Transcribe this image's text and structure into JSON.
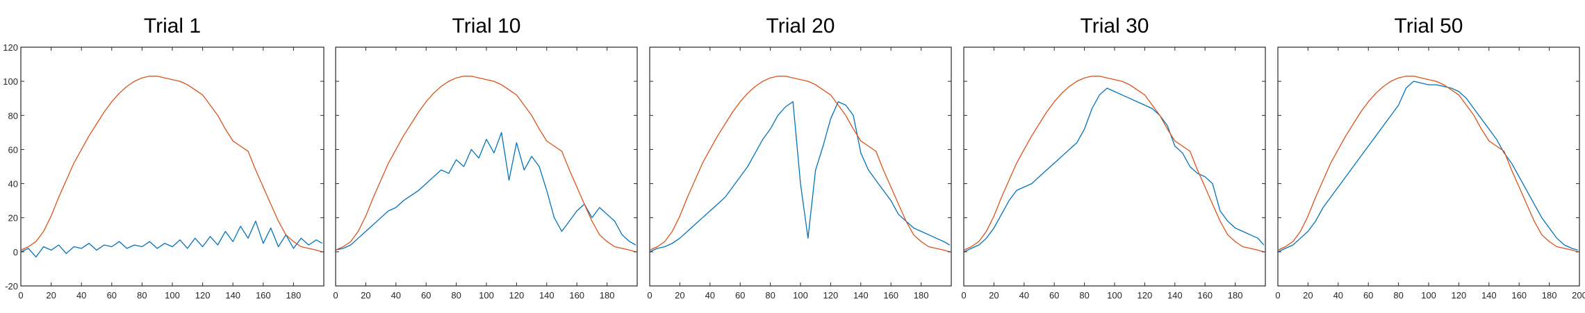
{
  "colors": {
    "series_1": "#0072BD",
    "series_2": "#D95319"
  },
  "chart_data": [
    {
      "type": "line",
      "title": "Trial 1",
      "xlim": [
        0,
        200
      ],
      "ylim": [
        -20,
        120
      ],
      "xticks": [
        0,
        20,
        40,
        60,
        80,
        100,
        120,
        140,
        160,
        180
      ],
      "yticks": [
        -20,
        0,
        20,
        40,
        60,
        80,
        100,
        120
      ],
      "xlabel": "",
      "ylabel": "",
      "grid": false,
      "legend": "none",
      "series": [
        {
          "x": [
            0,
            5,
            10,
            15,
            20,
            25,
            30,
            35,
            40,
            45,
            50,
            55,
            60,
            65,
            70,
            75,
            80,
            85,
            90,
            95,
            100,
            105,
            110,
            115,
            120,
            125,
            130,
            135,
            140,
            145,
            150,
            155,
            160,
            165,
            170,
            175,
            180,
            185,
            190,
            195,
            199
          ],
          "values": [
            0,
            2,
            -3,
            3,
            1,
            4,
            -1,
            3,
            2,
            5,
            1,
            4,
            3,
            6,
            2,
            4,
            3,
            6,
            2,
            5,
            3,
            7,
            2,
            8,
            3,
            9,
            4,
            12,
            6,
            15,
            8,
            18,
            5,
            14,
            3,
            10,
            2,
            8,
            4,
            7,
            5
          ]
        },
        {
          "x": [
            0,
            5,
            10,
            15,
            20,
            25,
            30,
            35,
            40,
            45,
            50,
            55,
            60,
            65,
            70,
            75,
            80,
            85,
            90,
            95,
            100,
            105,
            110,
            115,
            120,
            125,
            130,
            135,
            140,
            145,
            150,
            155,
            160,
            165,
            170,
            175,
            180,
            185,
            190,
            195,
            199
          ],
          "values": [
            1,
            3,
            6,
            12,
            21,
            32,
            42,
            52,
            60,
            68,
            75,
            82,
            88,
            93,
            97,
            100,
            102,
            103,
            103,
            102,
            101,
            100,
            98,
            95,
            92,
            86,
            80,
            72,
            65,
            62,
            59,
            48,
            38,
            28,
            18,
            10,
            6,
            3,
            2,
            1,
            0
          ]
        }
      ]
    },
    {
      "type": "line",
      "title": "Trial 10",
      "xlim": [
        0,
        200
      ],
      "ylim": [
        -20,
        120
      ],
      "xticks": [
        0,
        20,
        40,
        60,
        80,
        100,
        120,
        140,
        160,
        180
      ],
      "yticks": [],
      "xlabel": "",
      "ylabel": "",
      "grid": false,
      "legend": "none",
      "series": [
        {
          "x": [
            0,
            5,
            10,
            15,
            20,
            25,
            30,
            35,
            40,
            45,
            50,
            55,
            60,
            65,
            70,
            75,
            80,
            85,
            90,
            95,
            100,
            105,
            110,
            115,
            120,
            125,
            130,
            135,
            140,
            145,
            150,
            155,
            160,
            165,
            170,
            175,
            180,
            185,
            190,
            195,
            199
          ],
          "values": [
            1,
            2,
            4,
            8,
            12,
            16,
            20,
            24,
            26,
            30,
            33,
            36,
            40,
            44,
            48,
            46,
            54,
            50,
            60,
            55,
            66,
            58,
            70,
            42,
            64,
            48,
            56,
            50,
            36,
            20,
            12,
            18,
            24,
            28,
            20,
            26,
            22,
            18,
            10,
            6,
            4
          ]
        },
        {
          "x": [
            0,
            5,
            10,
            15,
            20,
            25,
            30,
            35,
            40,
            45,
            50,
            55,
            60,
            65,
            70,
            75,
            80,
            85,
            90,
            95,
            100,
            105,
            110,
            115,
            120,
            125,
            130,
            135,
            140,
            145,
            150,
            155,
            160,
            165,
            170,
            175,
            180,
            185,
            190,
            195,
            199
          ],
          "values": [
            1,
            3,
            6,
            12,
            21,
            32,
            42,
            52,
            60,
            68,
            75,
            82,
            88,
            93,
            97,
            100,
            102,
            103,
            103,
            102,
            101,
            100,
            98,
            95,
            92,
            86,
            80,
            72,
            65,
            62,
            59,
            48,
            38,
            28,
            18,
            10,
            6,
            3,
            2,
            1,
            0
          ]
        }
      ]
    },
    {
      "type": "line",
      "title": "Trial 20",
      "xlim": [
        0,
        200
      ],
      "ylim": [
        -20,
        120
      ],
      "xticks": [
        0,
        20,
        40,
        60,
        80,
        100,
        120,
        140,
        160,
        180
      ],
      "yticks": [],
      "xlabel": "",
      "ylabel": "",
      "grid": false,
      "legend": "none",
      "series": [
        {
          "x": [
            0,
            5,
            10,
            15,
            20,
            25,
            30,
            35,
            40,
            45,
            50,
            55,
            60,
            65,
            70,
            75,
            80,
            85,
            90,
            95,
            100,
            105,
            110,
            115,
            120,
            125,
            130,
            135,
            140,
            145,
            150,
            155,
            160,
            165,
            170,
            175,
            180,
            185,
            190,
            195,
            199
          ],
          "values": [
            0,
            2,
            3,
            5,
            8,
            12,
            16,
            20,
            24,
            28,
            32,
            38,
            44,
            50,
            58,
            66,
            72,
            80,
            85,
            88,
            40,
            8,
            48,
            62,
            78,
            88,
            86,
            80,
            58,
            48,
            42,
            36,
            30,
            22,
            18,
            14,
            12,
            10,
            8,
            6,
            4
          ]
        },
        {
          "x": [
            0,
            5,
            10,
            15,
            20,
            25,
            30,
            35,
            40,
            45,
            50,
            55,
            60,
            65,
            70,
            75,
            80,
            85,
            90,
            95,
            100,
            105,
            110,
            115,
            120,
            125,
            130,
            135,
            140,
            145,
            150,
            155,
            160,
            165,
            170,
            175,
            180,
            185,
            190,
            195,
            199
          ],
          "values": [
            1,
            3,
            6,
            12,
            21,
            32,
            42,
            52,
            60,
            68,
            75,
            82,
            88,
            93,
            97,
            100,
            102,
            103,
            103,
            102,
            101,
            100,
            98,
            95,
            92,
            86,
            80,
            72,
            65,
            62,
            59,
            48,
            38,
            28,
            18,
            10,
            6,
            3,
            2,
            1,
            0
          ]
        }
      ]
    },
    {
      "type": "line",
      "title": "Trial 30",
      "xlim": [
        0,
        200
      ],
      "ylim": [
        -20,
        120
      ],
      "xticks": [
        0,
        20,
        40,
        60,
        80,
        100,
        120,
        140,
        160,
        180
      ],
      "yticks": [],
      "xlabel": "",
      "ylabel": "",
      "grid": false,
      "legend": "none",
      "series": [
        {
          "x": [
            0,
            5,
            10,
            15,
            20,
            25,
            30,
            35,
            40,
            45,
            50,
            55,
            60,
            65,
            70,
            75,
            80,
            85,
            90,
            95,
            100,
            105,
            110,
            115,
            120,
            125,
            130,
            135,
            140,
            145,
            150,
            155,
            160,
            165,
            170,
            175,
            180,
            185,
            190,
            195,
            199
          ],
          "values": [
            0,
            2,
            4,
            8,
            14,
            22,
            30,
            36,
            38,
            40,
            44,
            48,
            52,
            56,
            60,
            64,
            72,
            84,
            92,
            96,
            94,
            92,
            90,
            88,
            86,
            84,
            80,
            74,
            62,
            58,
            50,
            46,
            44,
            40,
            24,
            18,
            14,
            12,
            10,
            8,
            4
          ]
        },
        {
          "x": [
            0,
            5,
            10,
            15,
            20,
            25,
            30,
            35,
            40,
            45,
            50,
            55,
            60,
            65,
            70,
            75,
            80,
            85,
            90,
            95,
            100,
            105,
            110,
            115,
            120,
            125,
            130,
            135,
            140,
            145,
            150,
            155,
            160,
            165,
            170,
            175,
            180,
            185,
            190,
            195,
            199
          ],
          "values": [
            1,
            3,
            6,
            12,
            21,
            32,
            42,
            52,
            60,
            68,
            75,
            82,
            88,
            93,
            97,
            100,
            102,
            103,
            103,
            102,
            101,
            100,
            98,
            95,
            92,
            86,
            80,
            72,
            65,
            62,
            59,
            48,
            38,
            28,
            18,
            10,
            6,
            3,
            2,
            1,
            0
          ]
        }
      ]
    },
    {
      "type": "line",
      "title": "Trial 50",
      "xlim": [
        0,
        200
      ],
      "ylim": [
        -20,
        120
      ],
      "xticks": [
        0,
        20,
        40,
        60,
        80,
        100,
        120,
        140,
        160,
        180,
        200
      ],
      "yticks": [],
      "xlabel": "",
      "ylabel": "",
      "grid": false,
      "legend": "none",
      "series": [
        {
          "x": [
            0,
            5,
            10,
            15,
            20,
            25,
            30,
            35,
            40,
            45,
            50,
            55,
            60,
            65,
            70,
            75,
            80,
            85,
            90,
            95,
            100,
            105,
            110,
            115,
            120,
            125,
            130,
            135,
            140,
            145,
            150,
            155,
            160,
            165,
            170,
            175,
            180,
            185,
            190,
            195,
            199
          ],
          "values": [
            0,
            2,
            4,
            8,
            12,
            18,
            26,
            32,
            38,
            44,
            50,
            56,
            62,
            68,
            74,
            80,
            86,
            96,
            100,
            99,
            98,
            98,
            97,
            96,
            94,
            90,
            84,
            78,
            72,
            66,
            58,
            52,
            44,
            36,
            28,
            20,
            14,
            8,
            4,
            2,
            1
          ]
        },
        {
          "x": [
            0,
            5,
            10,
            15,
            20,
            25,
            30,
            35,
            40,
            45,
            50,
            55,
            60,
            65,
            70,
            75,
            80,
            85,
            90,
            95,
            100,
            105,
            110,
            115,
            120,
            125,
            130,
            135,
            140,
            145,
            150,
            155,
            160,
            165,
            170,
            175,
            180,
            185,
            190,
            195,
            199
          ],
          "values": [
            1,
            3,
            6,
            12,
            21,
            32,
            42,
            52,
            60,
            68,
            75,
            82,
            88,
            93,
            97,
            100,
            102,
            103,
            103,
            102,
            101,
            100,
            98,
            95,
            92,
            86,
            80,
            72,
            65,
            62,
            59,
            48,
            38,
            28,
            18,
            10,
            6,
            3,
            2,
            1,
            0
          ]
        }
      ]
    }
  ]
}
